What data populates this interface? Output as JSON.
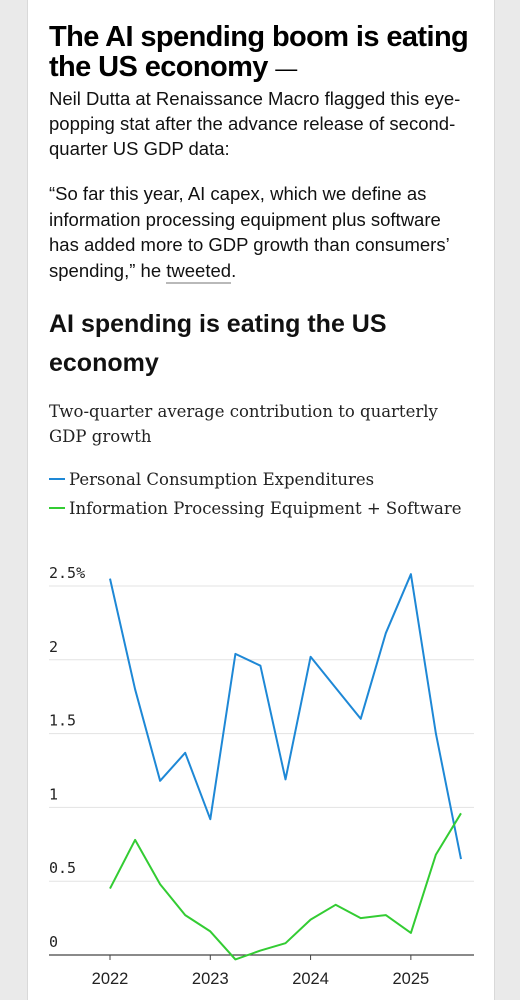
{
  "article": {
    "headline": "The AI spending boom is eating the US economy",
    "headline_dash": "—",
    "intro": "Neil Dutta at Renaissance Macro flagged this eye-popping stat after the advance release of second-quarter US GDP data:",
    "quote_text": "“So far this year, AI capex, which we define as information processing equipment plus software has added more to GDP growth than consumers’ spending,” he ",
    "quote_link": "tweeted",
    "quote_end": "."
  },
  "chart_data": {
    "type": "line",
    "title": "AI spending is eating the US economy",
    "subtitle": "Two-quarter average contribution to quarterly GDP growth",
    "x": [
      2022.0,
      2022.25,
      2022.5,
      2022.75,
      2023.0,
      2023.25,
      2023.5,
      2023.75,
      2024.0,
      2024.25,
      2024.5,
      2024.75,
      2025.0,
      2025.25,
      2025.5
    ],
    "series": [
      {
        "name": "Personal Consumption Expenditures",
        "color": "#1e88d6",
        "values": [
          2.55,
          1.8,
          1.18,
          1.37,
          0.92,
          2.04,
          1.96,
          1.19,
          2.02,
          1.81,
          1.6,
          2.18,
          2.58,
          1.5,
          0.65
        ]
      },
      {
        "name": "Information Processing Equipment + Software",
        "color": "#33cc33",
        "values": [
          0.45,
          0.78,
          0.48,
          0.27,
          0.16,
          -0.03,
          0.03,
          0.08,
          0.24,
          0.34,
          0.25,
          0.27,
          0.15,
          0.68,
          0.96
        ]
      }
    ],
    "yticks": [
      "0",
      "0.5",
      "1",
      "1.5",
      "2",
      "2.5%"
    ],
    "ytick_values": [
      0,
      0.5,
      1,
      1.5,
      2,
      2.5
    ],
    "xticks": [
      "2022",
      "2023",
      "2024",
      "2025"
    ],
    "xtick_values": [
      2022,
      2023,
      2024,
      2025
    ],
    "ylim": [
      0,
      2.6
    ],
    "xlim": [
      2021.6,
      2025.7
    ],
    "grid": true,
    "legend_placement": "top-left"
  }
}
